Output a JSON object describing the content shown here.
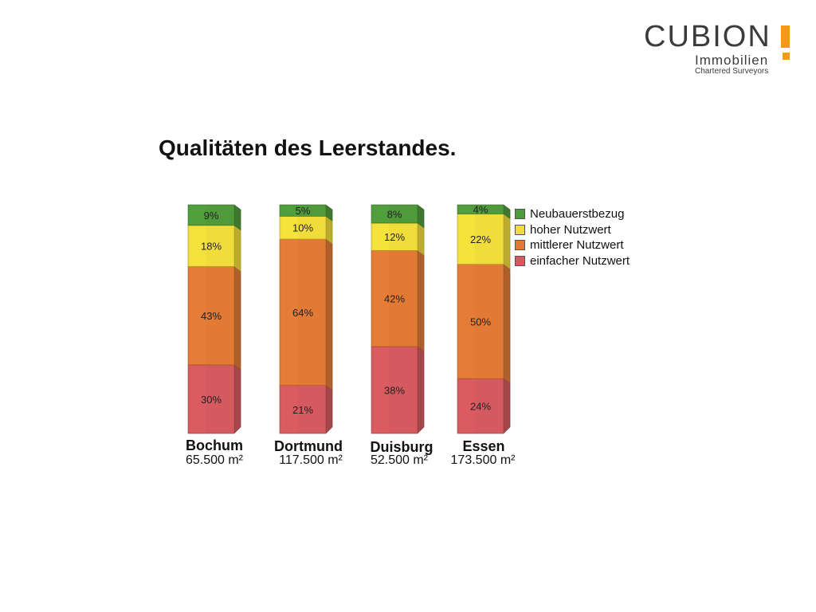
{
  "logo": {
    "word": "CUBION",
    "line1": "Immobilien",
    "line2": "Chartered Surveyors",
    "accent": "#f39a17"
  },
  "title": "Qualitäten des Leerstandes.",
  "legend": [
    {
      "label": "Neubauerstbezug",
      "color": "#4f9a3b"
    },
    {
      "label": "hoher Nutzwert",
      "color": "#f0dc3a"
    },
    {
      "label": "mittlerer Nutzwert",
      "color": "#e07a35"
    },
    {
      "label": "einfacher Nutzwert",
      "color": "#d45a5f"
    }
  ],
  "chart_data": {
    "type": "bar",
    "stacked": true,
    "categories": [
      "Bochum",
      "Dortmund",
      "Duisburg",
      "Essen"
    ],
    "category_subtitles": [
      "65.500 m²",
      "117.500 m²",
      "52.500 m²",
      "173.500 m²"
    ],
    "series": [
      {
        "name": "einfacher Nutzwert",
        "values": [
          30,
          21,
          38,
          24
        ],
        "color": "#d45a5f"
      },
      {
        "name": "mittlerer Nutzwert",
        "values": [
          43,
          64,
          42,
          50
        ],
        "color": "#e07a35"
      },
      {
        "name": "hoher Nutzwert",
        "values": [
          18,
          10,
          12,
          22
        ],
        "color": "#f0dc3a"
      },
      {
        "name": "Neubauerstbezug",
        "values": [
          9,
          5,
          8,
          4
        ],
        "color": "#4f9a3b"
      }
    ],
    "value_labels": [
      [
        "30%",
        "43%",
        "18%",
        "9%"
      ],
      [
        "21%",
        "64%",
        "10%",
        "5%"
      ],
      [
        "38%",
        "42%",
        "12%",
        "8%"
      ],
      [
        "24%",
        "50%",
        "22%",
        "4%"
      ]
    ],
    "ylim": [
      0,
      100
    ]
  }
}
